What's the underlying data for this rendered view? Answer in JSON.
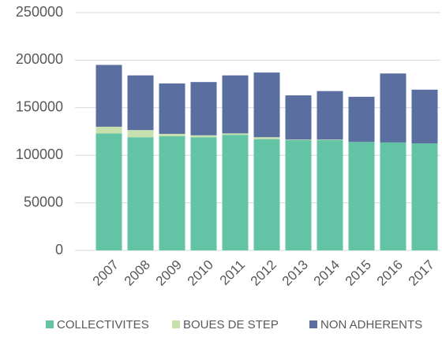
{
  "chart_data": {
    "type": "stacked_bar",
    "categories": [
      "2007",
      "2008",
      "2009",
      "2010",
      "2011",
      "2012",
      "2013",
      "2014",
      "2015",
      "2016",
      "2017"
    ],
    "series": [
      {
        "name": "COLLECTIVITES",
        "color": "#63c4a5",
        "values": [
          123000,
          119000,
          120000,
          119000,
          121500,
          117000,
          116000,
          116000,
          114000,
          113500,
          112500
        ]
      },
      {
        "name": "BOUES DE STEP",
        "color": "#c8dfae",
        "values": [
          7000,
          7500,
          2500,
          2000,
          1500,
          2000,
          500,
          500,
          0,
          0,
          0
        ]
      },
      {
        "name": "NON ADHERENTS",
        "color": "#5a6fa0",
        "values": [
          65000,
          57500,
          53000,
          56000,
          61000,
          68000,
          46500,
          51000,
          47500,
          72500,
          56500
        ]
      }
    ],
    "ylim": [
      0,
      250000
    ],
    "yticks": [
      0,
      50000,
      100000,
      150000,
      200000,
      250000
    ],
    "grid": true,
    "legend": "bottom"
  }
}
